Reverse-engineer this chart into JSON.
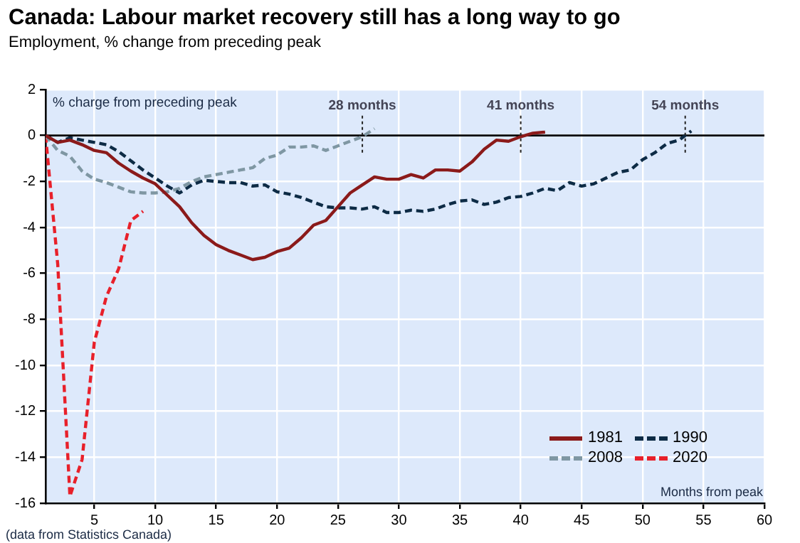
{
  "chart_data": {
    "type": "line",
    "title": "Canada: Labour market recovery still has a long way to go",
    "subtitle": "Employment, % change from preceding peak",
    "xlabel": "Months from peak",
    "xlim": [
      1,
      60
    ],
    "xticks": [
      5,
      10,
      15,
      20,
      25,
      30,
      35,
      40,
      45,
      50,
      55,
      60
    ],
    "ylim": [
      -16,
      2
    ],
    "yticks": [
      -16,
      -14,
      -12,
      -10,
      -8,
      -6,
      -4,
      -2,
      0,
      2
    ],
    "grid": true,
    "legend": "bottom right",
    "ref_lines": [
      {
        "axis": "y",
        "value": 0,
        "color": "#000000"
      }
    ],
    "annotations": [
      "% charge from preceding peak",
      {
        "text": "28 months",
        "x": 27,
        "y": 0
      },
      {
        "text": "41 months",
        "x": 40,
        "y": 0
      },
      {
        "text": "54 months",
        "x": 53.5,
        "y": 0
      },
      "(data from Statistics Canada)"
    ],
    "series": [
      {
        "name": "1981",
        "color": "#8b1a1a",
        "line_style": "solid",
        "x": [
          1,
          2,
          3,
          4,
          5,
          6,
          7,
          8,
          9,
          10,
          11,
          12,
          13,
          14,
          15,
          16,
          17,
          18,
          19,
          20,
          21,
          22,
          23,
          24,
          25,
          26,
          27,
          28,
          29,
          30,
          31,
          32,
          33,
          34,
          35,
          36,
          37,
          38,
          39,
          40,
          41,
          42
        ],
        "values": [
          0,
          -0.3,
          -0.2,
          -0.4,
          -0.65,
          -0.75,
          -1.2,
          -1.55,
          -1.85,
          -2.1,
          -2.6,
          -3.1,
          -3.8,
          -4.35,
          -4.75,
          -5.0,
          -5.2,
          -5.4,
          -5.3,
          -5.05,
          -4.9,
          -4.45,
          -3.9,
          -3.7,
          -3.1,
          -2.5,
          -2.15,
          -1.8,
          -1.9,
          -1.9,
          -1.7,
          -1.85,
          -1.5,
          -1.5,
          -1.55,
          -1.15,
          -0.6,
          -0.2,
          -0.25,
          -0.05,
          0.1,
          0.15
        ]
      },
      {
        "name": "1990",
        "color": "#0d2b45",
        "line_style": "dashed",
        "x": [
          1,
          2,
          3,
          4,
          5,
          6,
          7,
          8,
          9,
          10,
          11,
          12,
          13,
          14,
          15,
          16,
          17,
          18,
          19,
          20,
          21,
          22,
          23,
          24,
          25,
          26,
          27,
          28,
          29,
          30,
          31,
          32,
          33,
          34,
          35,
          36,
          37,
          38,
          39,
          40,
          41,
          42,
          43,
          44,
          45,
          46,
          47,
          48,
          49,
          50,
          51,
          52,
          53,
          54
        ],
        "values": [
          0,
          -0.3,
          -0.1,
          -0.2,
          -0.3,
          -0.4,
          -0.7,
          -1.1,
          -1.5,
          -1.85,
          -2.2,
          -2.5,
          -2.15,
          -1.95,
          -2.0,
          -2.05,
          -2.05,
          -2.2,
          -2.15,
          -2.45,
          -2.55,
          -2.7,
          -2.9,
          -3.1,
          -3.15,
          -3.15,
          -3.2,
          -3.1,
          -3.35,
          -3.35,
          -3.25,
          -3.3,
          -3.2,
          -3.0,
          -2.85,
          -2.8,
          -3.0,
          -2.9,
          -2.7,
          -2.65,
          -2.5,
          -2.3,
          -2.4,
          -2.05,
          -2.2,
          -2.1,
          -1.85,
          -1.6,
          -1.5,
          -1.05,
          -0.75,
          -0.35,
          -0.2,
          0.2
        ]
      },
      {
        "name": "2008",
        "color": "#7f97a3",
        "line_style": "dashed",
        "x": [
          1,
          2,
          3,
          4,
          5,
          6,
          7,
          8,
          9,
          10,
          11,
          12,
          13,
          14,
          15,
          16,
          17,
          18,
          19,
          20,
          21,
          22,
          23,
          24,
          25,
          26,
          27,
          28
        ],
        "values": [
          0,
          -0.65,
          -0.9,
          -1.55,
          -1.9,
          -2.05,
          -2.25,
          -2.45,
          -2.5,
          -2.5,
          -2.45,
          -2.3,
          -2.0,
          -1.8,
          -1.7,
          -1.6,
          -1.5,
          -1.4,
          -1.0,
          -0.85,
          -0.5,
          -0.5,
          -0.45,
          -0.65,
          -0.45,
          -0.25,
          -0.05,
          0.3
        ]
      },
      {
        "name": "2020",
        "color": "#e8202a",
        "line_style": "dashed",
        "x": [
          1,
          2,
          3,
          4,
          5,
          6,
          7,
          8,
          9
        ],
        "values": [
          0,
          -5.6,
          -15.7,
          -14.1,
          -9.0,
          -7.0,
          -5.8,
          -3.7,
          -3.3
        ]
      }
    ]
  }
}
